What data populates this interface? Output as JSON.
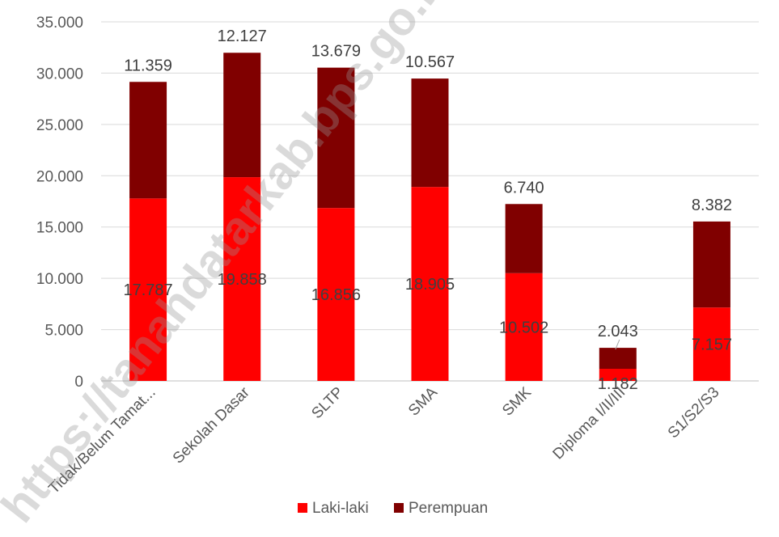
{
  "chart_data": {
    "type": "bar",
    "stacked": true,
    "categories": [
      "Tidak/Belum Tamat...",
      "Sekolah Dasar",
      "SLTP",
      "SMA",
      "SMK",
      "Diploma I/II/III",
      "S1/S2/S3"
    ],
    "series": [
      {
        "name": "Laki-laki",
        "color": "#FF0000",
        "values": [
          17787,
          19858,
          16856,
          18905,
          10502,
          1182,
          7157
        ],
        "labels": [
          "17.787",
          "19.858",
          "16.856",
          "18.905",
          "10.502",
          "1.182",
          "7.157"
        ]
      },
      {
        "name": "Perempuan",
        "color": "#800000",
        "values": [
          11359,
          12127,
          13679,
          10567,
          6740,
          2043,
          8382
        ],
        "labels": [
          "11.359",
          "12.127",
          "13.679",
          "10.567",
          "6.740",
          "2.043",
          "8.382"
        ]
      }
    ],
    "ylim": [
      0,
      35000
    ],
    "yticks": [
      {
        "value": 0,
        "label": "0"
      },
      {
        "value": 5000,
        "label": "5.000"
      },
      {
        "value": 10000,
        "label": "10.000"
      },
      {
        "value": 15000,
        "label": "15.000"
      },
      {
        "value": 20000,
        "label": "20.000"
      },
      {
        "value": 25000,
        "label": "25.000"
      },
      {
        "value": 30000,
        "label": "30.000"
      },
      {
        "value": 35000,
        "label": "35.000"
      }
    ],
    "grid": true,
    "legend_position": "bottom",
    "title": "",
    "xlabel": "",
    "ylabel": ""
  },
  "watermark": "https://tanahdatarkab.bps.go.id"
}
